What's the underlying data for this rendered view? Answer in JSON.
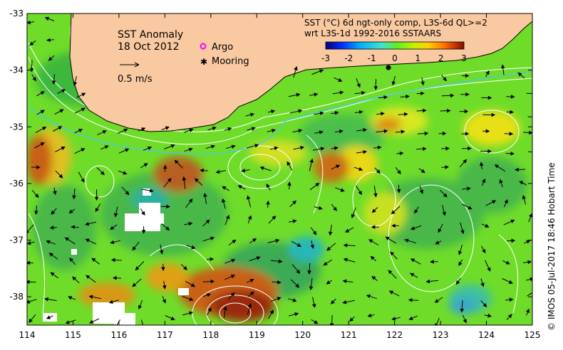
{
  "map": {
    "title": "SST Anomaly",
    "date": "18 Oct 2012",
    "scale_label": "0.5 m/s",
    "legend": [
      {
        "label": "Argo",
        "symbol_color": "#ff00ff"
      },
      {
        "label": "Mooring",
        "symbol_color": "#000000"
      }
    ],
    "product_line1": "SST (°C) 6d ngt-only comp, L3S-6d QL>=2",
    "product_line2": "wrt L3S-1d 1992-2016 SSTAARS",
    "credit": "© IMOS 05-Jul-2017 18:46 Hobart Time",
    "lon_ticks": [
      "114",
      "115",
      "116",
      "117",
      "118",
      "119",
      "120",
      "121",
      "122",
      "123",
      "124",
      "125"
    ],
    "lat_ticks": [
      "-33",
      "-34",
      "-35",
      "-36",
      "-37",
      "-38"
    ],
    "lon_range": [
      114,
      125
    ],
    "lat_range": [
      -38.5,
      -33
    ],
    "colorbar": {
      "ticks": [
        "-3",
        "-2",
        "-1",
        "0",
        "1",
        "2",
        "3"
      ],
      "range": [
        -3,
        3
      ],
      "colors": [
        "#000080",
        "#0030ff",
        "#00b0ff",
        "#40e0d0",
        "#60f020",
        "#c8f000",
        "#ffd000",
        "#ff7000",
        "#c03000",
        "#801000"
      ]
    },
    "colors": {
      "land": "#f9c9a1",
      "sea_base": "#6fdc2a",
      "coast": "#000000",
      "contour": "#ffffff",
      "front": "#40c8ff"
    }
  }
}
